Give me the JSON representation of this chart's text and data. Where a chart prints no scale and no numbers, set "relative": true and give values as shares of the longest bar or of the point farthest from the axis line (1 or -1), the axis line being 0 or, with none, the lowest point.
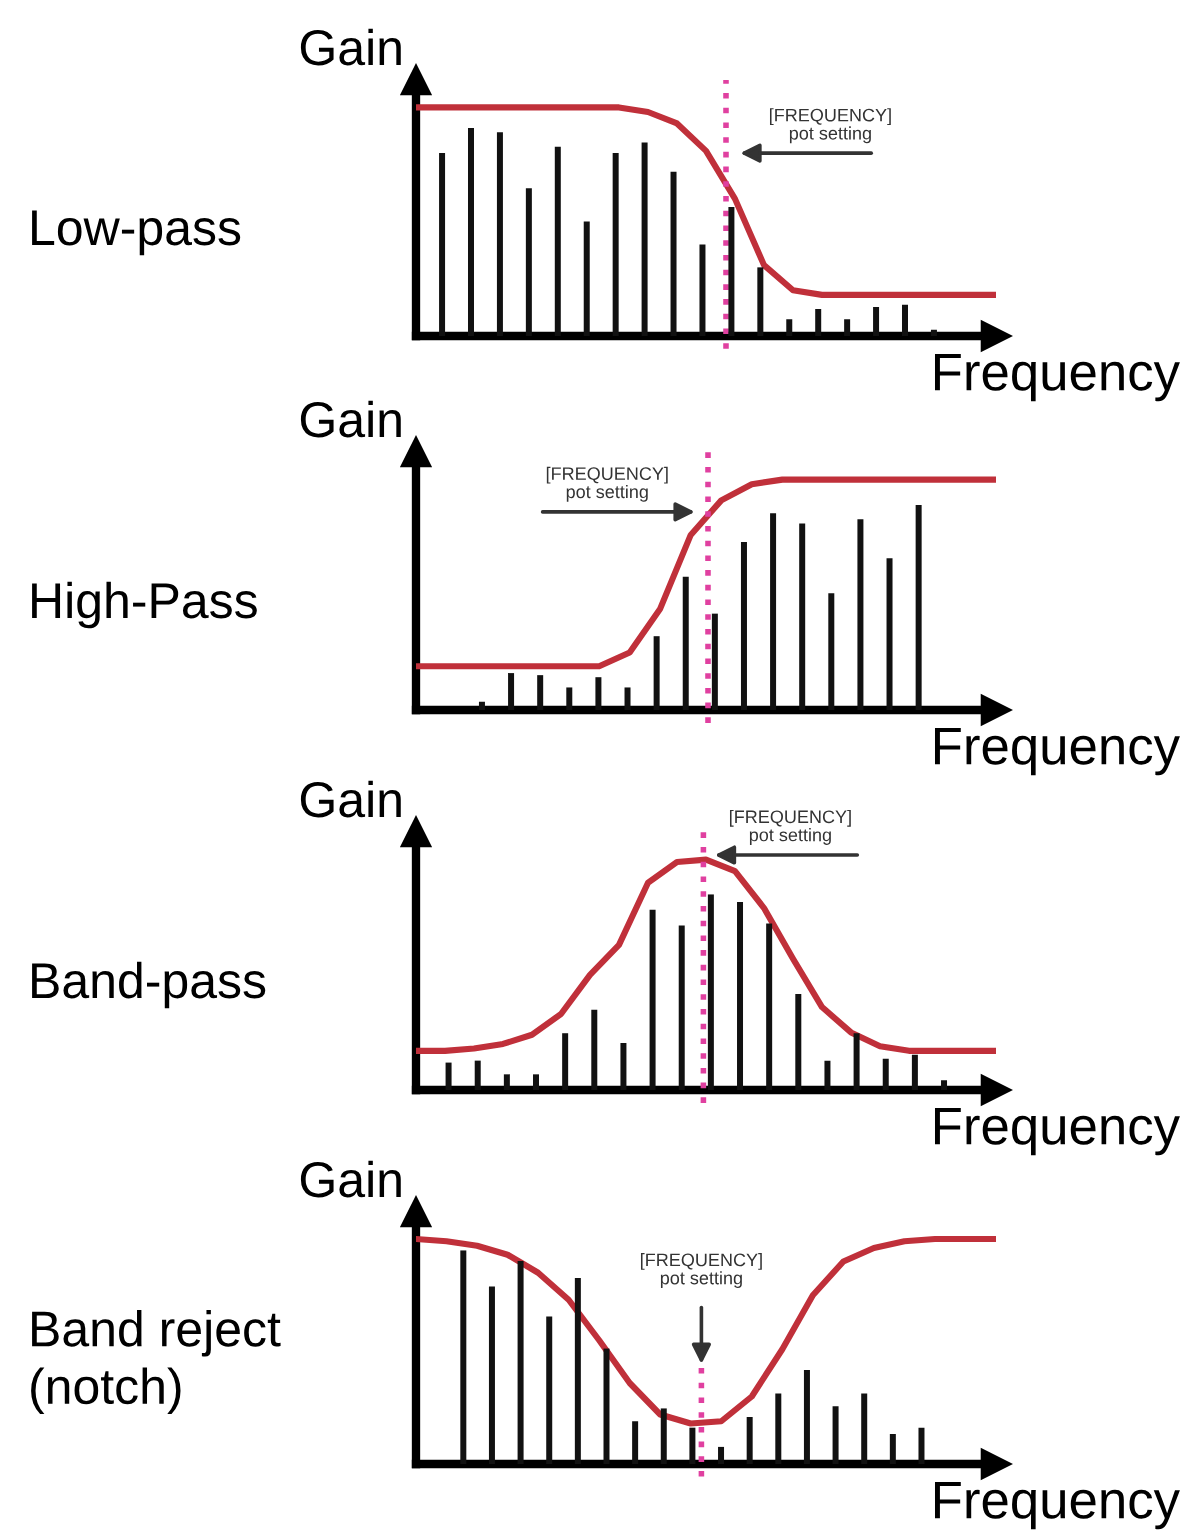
{
  "chart_data": [
    {
      "type": "line",
      "title": "Low-pass",
      "xlabel": "Frequency",
      "ylabel": "Gain",
      "relative": true,
      "color": "#c0303a",
      "categories": [
        null,
        null,
        null,
        null,
        null,
        null,
        null,
        null,
        null,
        null,
        null,
        null,
        null,
        null,
        null,
        null,
        null,
        null,
        null,
        null,
        null
      ],
      "values": [
        1.0,
        1.0,
        1.0,
        1.0,
        1.0,
        1.0,
        1.0,
        1.0,
        0.98,
        0.93,
        0.81,
        0.6,
        0.31,
        0.2,
        0.18,
        0.18,
        0.18,
        0.18,
        0.18,
        0.18,
        0.18
      ],
      "annotations": [
        "[FREQUENCY]\npot setting"
      ]
    },
    {
      "type": "bar",
      "relative": true,
      "color": "#111111",
      "categories": [
        null,
        null,
        null,
        null,
        null,
        null,
        null,
        null,
        null,
        null,
        null,
        null,
        null,
        null,
        null,
        null,
        null,
        null
      ],
      "values": [
        0.88,
        1.0,
        0.98,
        0.71,
        0.91,
        0.55,
        0.88,
        0.93,
        0.79,
        0.44,
        0.62,
        0.33,
        0.08,
        0.13,
        0.08,
        0.14,
        0.15,
        0.03
      ]
    },
    {
      "type": "line",
      "title": "High-Pass",
      "xlabel": "Frequency",
      "ylabel": "Gain",
      "relative": true,
      "color": "#c0303a",
      "categories": [
        null,
        null,
        null,
        null,
        null,
        null,
        null,
        null,
        null,
        null,
        null,
        null,
        null,
        null,
        null,
        null,
        null,
        null,
        null,
        null
      ],
      "values": [
        0.19,
        0.19,
        0.19,
        0.19,
        0.19,
        0.19,
        0.19,
        0.25,
        0.44,
        0.76,
        0.91,
        0.98,
        1.0,
        1.0,
        1.0,
        1.0,
        1.0,
        1.0,
        1.0,
        1.0
      ],
      "annotations": [
        "[FREQUENCY]\npot setting"
      ]
    },
    {
      "type": "bar",
      "relative": true,
      "color": "#111111",
      "categories": [
        null,
        null,
        null,
        null,
        null,
        null,
        null,
        null,
        null,
        null,
        null,
        null,
        null,
        null,
        null,
        null
      ],
      "values": [
        0.04,
        0.18,
        0.17,
        0.11,
        0.16,
        0.11,
        0.36,
        0.65,
        0.47,
        0.82,
        0.96,
        0.91,
        0.57,
        0.93,
        0.74,
        1.0
      ]
    },
    {
      "type": "line",
      "title": "Band-pass",
      "xlabel": "Frequency",
      "ylabel": "Gain",
      "relative": true,
      "color": "#c0303a",
      "categories": [
        null,
        null,
        null,
        null,
        null,
        null,
        null,
        null,
        null,
        null,
        null,
        null,
        null,
        null,
        null,
        null,
        null,
        null,
        null,
        null,
        null
      ],
      "values": [
        0.17,
        0.17,
        0.18,
        0.2,
        0.24,
        0.33,
        0.5,
        0.63,
        0.9,
        0.99,
        1.0,
        0.95,
        0.79,
        0.57,
        0.36,
        0.25,
        0.19,
        0.17,
        0.17,
        0.17,
        0.17
      ],
      "annotations": [
        "[FREQUENCY]\npot setting"
      ]
    },
    {
      "type": "bar",
      "relative": true,
      "color": "#111111",
      "categories": [
        null,
        null,
        null,
        null,
        null,
        null,
        null,
        null,
        null,
        null,
        null,
        null,
        null,
        null,
        null,
        null,
        null,
        null
      ],
      "values": [
        0.14,
        0.15,
        0.08,
        0.08,
        0.29,
        0.41,
        0.24,
        0.92,
        0.84,
        1.0,
        0.96,
        0.85,
        0.49,
        0.15,
        0.29,
        0.16,
        0.18,
        0.05
      ]
    },
    {
      "type": "line",
      "title": "Band reject\n(notch)",
      "xlabel": "Frequency",
      "ylabel": "Gain",
      "relative": true,
      "color": "#c0303a",
      "categories": [
        null,
        null,
        null,
        null,
        null,
        null,
        null,
        null,
        null,
        null,
        null,
        null,
        null,
        null,
        null,
        null,
        null,
        null,
        null,
        null
      ],
      "values": [
        1.0,
        0.99,
        0.97,
        0.93,
        0.85,
        0.73,
        0.55,
        0.36,
        0.22,
        0.18,
        0.19,
        0.3,
        0.51,
        0.75,
        0.9,
        0.96,
        0.99,
        1.0,
        1.0,
        1.0
      ],
      "annotations": [
        "[FREQUENCY]\npot setting"
      ]
    },
    {
      "type": "bar",
      "relative": true,
      "color": "#111111",
      "categories": [
        null,
        null,
        null,
        null,
        null,
        null,
        null,
        null,
        null,
        null,
        null,
        null,
        null,
        null,
        null,
        null,
        null
      ],
      "values": [
        1.0,
        0.83,
        0.95,
        0.69,
        0.87,
        0.54,
        0.2,
        0.26,
        0.17,
        0.08,
        0.22,
        0.33,
        0.44,
        0.27,
        0.33,
        0.14,
        0.17
      ]
    }
  ]
}
